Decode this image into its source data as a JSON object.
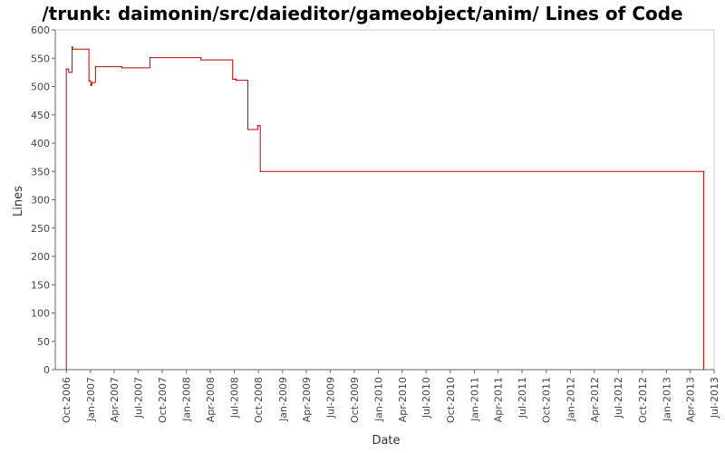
{
  "chart_data": {
    "type": "line",
    "title": "/trunk: daimonin/src/daieditor/gameobject/anim/ Lines of Code",
    "xlabel": "Date",
    "ylabel": "Lines",
    "ylim": [
      0,
      600
    ],
    "xlim": [
      "2006-08-20",
      "2013-07-01"
    ],
    "y_ticks": [
      "0",
      "50",
      "100",
      "150",
      "200",
      "250",
      "300",
      "350",
      "400",
      "450",
      "500",
      "550",
      "600"
    ],
    "x_ticks": [
      {
        "date": "2006-10-01",
        "label": "Oct-2006"
      },
      {
        "date": "2007-01-01",
        "label": "Jan-2007"
      },
      {
        "date": "2007-04-01",
        "label": "Apr-2007"
      },
      {
        "date": "2007-07-01",
        "label": "Jul-2007"
      },
      {
        "date": "2007-10-01",
        "label": "Oct-2007"
      },
      {
        "date": "2008-01-01",
        "label": "Jan-2008"
      },
      {
        "date": "2008-04-01",
        "label": "Apr-2008"
      },
      {
        "date": "2008-07-01",
        "label": "Jul-2008"
      },
      {
        "date": "2008-10-01",
        "label": "Oct-2008"
      },
      {
        "date": "2009-01-01",
        "label": "Jan-2009"
      },
      {
        "date": "2009-04-01",
        "label": "Apr-2009"
      },
      {
        "date": "2009-07-01",
        "label": "Jul-2009"
      },
      {
        "date": "2009-10-01",
        "label": "Oct-2009"
      },
      {
        "date": "2010-01-01",
        "label": "Jan-2010"
      },
      {
        "date": "2010-04-01",
        "label": "Apr-2010"
      },
      {
        "date": "2010-07-01",
        "label": "Jul-2010"
      },
      {
        "date": "2010-10-01",
        "label": "Oct-2010"
      },
      {
        "date": "2011-01-01",
        "label": "Jan-2011"
      },
      {
        "date": "2011-04-01",
        "label": "Apr-2011"
      },
      {
        "date": "2011-07-01",
        "label": "Jul-2011"
      },
      {
        "date": "2011-10-01",
        "label": "Oct-2011"
      },
      {
        "date": "2012-01-01",
        "label": "Jan-2012"
      },
      {
        "date": "2012-04-01",
        "label": "Apr-2012"
      },
      {
        "date": "2012-07-01",
        "label": "Jul-2012"
      },
      {
        "date": "2012-10-01",
        "label": "Oct-2012"
      },
      {
        "date": "2013-01-01",
        "label": "Jan-2013"
      },
      {
        "date": "2013-04-01",
        "label": "Apr-2013"
      },
      {
        "date": "2013-07-01",
        "label": "Jul-2013"
      }
    ],
    "grid": false,
    "legend": "none",
    "series": [
      {
        "color": "#c00000",
        "step": true,
        "points": [
          {
            "x": "2006-10-01",
            "y": 0
          },
          {
            "x": "2006-10-01",
            "y": 531
          },
          {
            "x": "2006-10-10",
            "y": 525
          },
          {
            "x": "2006-10-23",
            "y": 570
          },
          {
            "x": "2006-10-25",
            "y": 566
          },
          {
            "x": "2006-12-26",
            "y": 510
          },
          {
            "x": "2007-01-02",
            "y": 502
          },
          {
            "x": "2007-01-06",
            "y": 507
          },
          {
            "x": "2007-01-20",
            "y": 535
          },
          {
            "x": "2007-05-01",
            "y": 533
          },
          {
            "x": "2007-08-15",
            "y": 551
          },
          {
            "x": "2008-02-25",
            "y": 547
          },
          {
            "x": "2008-06-25",
            "y": 513
          },
          {
            "x": "2008-07-08",
            "y": 511
          },
          {
            "x": "2008-08-22",
            "y": 424
          },
          {
            "x": "2008-09-28",
            "y": 431
          },
          {
            "x": "2008-10-08",
            "y": 350
          },
          {
            "x": "2013-05-22",
            "y": 350
          },
          {
            "x": "2013-05-22",
            "y": 0
          }
        ]
      }
    ]
  }
}
